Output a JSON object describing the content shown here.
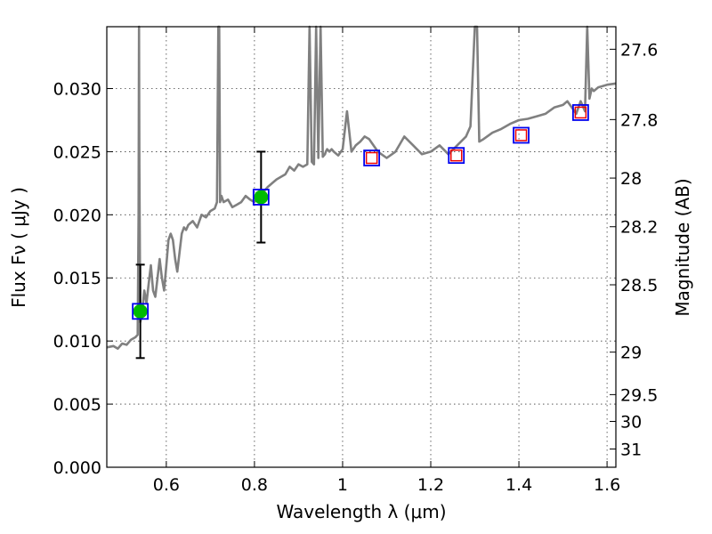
{
  "chart_data": {
    "type": "line",
    "xlabel": "Wavelength  λ (μm)",
    "ylabel": "Flux  Fν  ( μJy )",
    "y2label": "Magnitude (AB)",
    "xlim": [
      0.465,
      1.62
    ],
    "ylim": [
      0.0,
      0.0349
    ],
    "x_ticks": [
      0.6,
      0.8,
      1.0,
      1.2,
      1.4,
      1.6
    ],
    "x_tick_labels": [
      "0.6",
      "0.8",
      "1",
      "1.2",
      "1.4",
      "1.6"
    ],
    "y_ticks": [
      0.0,
      0.005,
      0.01,
      0.015,
      0.02,
      0.025,
      0.03
    ],
    "y_tick_labels": [
      "0.000",
      "0.005",
      "0.010",
      "0.015",
      "0.020",
      "0.025",
      "0.030"
    ],
    "y2_ticks": [
      27.6,
      27.8,
      28.0,
      28.2,
      28.5,
      29.0,
      29.5,
      30.0,
      31.0
    ],
    "y2_tick_labels": [
      "27.6",
      "27.8",
      "28",
      "28.2",
      "28.5",
      "29",
      "29.5",
      "30",
      "31"
    ],
    "grid": true,
    "colors": {
      "spectrum": "#808080",
      "observed": "#00bb00",
      "model_box": "#0000ee",
      "model_inner": "#ee0000",
      "errorbar": "#000000"
    },
    "series": [
      {
        "kind": "spectrum",
        "x": [
          0.465,
          0.48,
          0.49,
          0.5,
          0.51,
          0.52,
          0.53,
          0.535,
          0.537,
          0.538,
          0.539,
          0.541,
          0.543,
          0.546,
          0.55,
          0.555,
          0.56,
          0.565,
          0.57,
          0.575,
          0.58,
          0.585,
          0.59,
          0.595,
          0.6,
          0.605,
          0.61,
          0.615,
          0.62,
          0.625,
          0.63,
          0.635,
          0.64,
          0.645,
          0.65,
          0.66,
          0.67,
          0.68,
          0.69,
          0.7,
          0.71,
          0.715,
          0.718,
          0.72,
          0.722,
          0.725,
          0.73,
          0.74,
          0.75,
          0.76,
          0.77,
          0.78,
          0.79,
          0.8,
          0.81,
          0.82,
          0.83,
          0.84,
          0.85,
          0.86,
          0.87,
          0.88,
          0.89,
          0.9,
          0.91,
          0.92,
          0.925,
          0.93,
          0.935,
          0.94,
          0.945,
          0.95,
          0.955,
          0.96,
          0.962,
          0.965,
          0.97,
          0.975,
          0.98,
          0.99,
          1.0,
          1.01,
          1.02,
          1.03,
          1.04,
          1.05,
          1.06,
          1.08,
          1.1,
          1.12,
          1.14,
          1.16,
          1.18,
          1.2,
          1.22,
          1.24,
          1.26,
          1.28,
          1.29,
          1.3,
          1.305,
          1.31,
          1.32,
          1.34,
          1.36,
          1.38,
          1.4,
          1.42,
          1.44,
          1.46,
          1.48,
          1.5,
          1.51,
          1.52,
          1.53,
          1.54,
          1.55,
          1.555,
          1.56,
          1.565,
          1.57,
          1.58,
          1.59,
          1.6,
          1.62
        ],
        "y": [
          0.0095,
          0.0096,
          0.0094,
          0.0098,
          0.0097,
          0.0101,
          0.0103,
          0.0105,
          0.02,
          0.0349,
          0.024,
          0.0115,
          0.0118,
          0.0125,
          0.014,
          0.013,
          0.0145,
          0.016,
          0.014,
          0.0135,
          0.015,
          0.0165,
          0.015,
          0.014,
          0.016,
          0.018,
          0.0185,
          0.018,
          0.0165,
          0.0155,
          0.017,
          0.0185,
          0.019,
          0.0188,
          0.0192,
          0.0195,
          0.019,
          0.02,
          0.0198,
          0.0203,
          0.0205,
          0.021,
          0.0349,
          0.0349,
          0.021,
          0.0215,
          0.021,
          0.0212,
          0.0206,
          0.0208,
          0.021,
          0.0215,
          0.0212,
          0.021,
          0.0215,
          0.0218,
          0.0222,
          0.0225,
          0.0228,
          0.023,
          0.0232,
          0.0238,
          0.0235,
          0.024,
          0.0238,
          0.024,
          0.0349,
          0.0242,
          0.024,
          0.0349,
          0.0245,
          0.0349,
          0.0246,
          0.0248,
          0.025,
          0.0252,
          0.025,
          0.0252,
          0.025,
          0.0247,
          0.0252,
          0.0282,
          0.025,
          0.0255,
          0.0258,
          0.0262,
          0.026,
          0.025,
          0.0245,
          0.025,
          0.0262,
          0.0255,
          0.0248,
          0.025,
          0.0255,
          0.0248,
          0.0255,
          0.0262,
          0.027,
          0.0349,
          0.0349,
          0.0258,
          0.026,
          0.0265,
          0.0268,
          0.0272,
          0.0275,
          0.0276,
          0.0278,
          0.028,
          0.0285,
          0.0287,
          0.029,
          0.0285,
          0.028,
          0.029,
          0.0282,
          0.0349,
          0.0292,
          0.03,
          0.0298,
          0.0301,
          0.0302,
          0.0303,
          0.0304
        ]
      },
      {
        "kind": "observed",
        "x": [
          0.541,
          0.815
        ],
        "y": [
          0.01235,
          0.0214
        ],
        "yerr": [
          0.0037,
          0.0036
        ]
      },
      {
        "kind": "model",
        "x": [
          0.541,
          0.815,
          1.066,
          1.258,
          1.405,
          1.54
        ],
        "y": [
          0.01235,
          0.0214,
          0.0245,
          0.0247,
          0.0263,
          0.0281
        ],
        "inner_red": [
          false,
          false,
          true,
          true,
          true,
          true
        ]
      }
    ]
  }
}
